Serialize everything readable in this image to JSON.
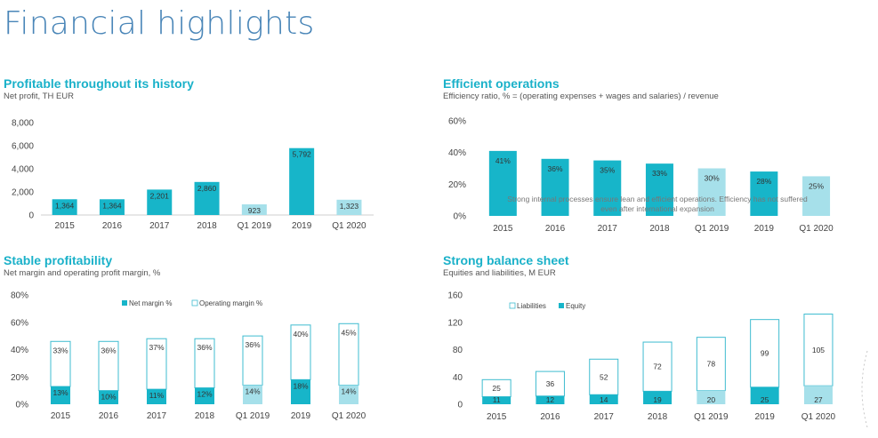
{
  "page": {
    "title": "Financial highlights"
  },
  "colors": {
    "dark": "#17b5c9",
    "light": "#a6e0ea",
    "outline": "#3fbcd0",
    "title": "#4a86b8",
    "panel_title": "#1ab1c9"
  },
  "panels": {
    "net_profit": {
      "title": "Profitable throughout its history",
      "subtitle": "Net profit, TH EUR"
    },
    "efficiency": {
      "title": "Efficient operations",
      "subtitle": "Efficiency ratio, % = (operating expenses + wages and salaries) / revenue",
      "annotation_line1": "Strong internal processes ensure lean and efficient operations. Efficiency has not suffered",
      "annotation_line2": "even after international expansion"
    },
    "margins": {
      "title": "Stable profitability",
      "subtitle": "Net margin and operating profit margin, %"
    },
    "balance": {
      "title": "Strong balance sheet",
      "subtitle": "Equities and liabilities, M EUR"
    }
  },
  "chart_data": [
    {
      "id": "net_profit",
      "type": "bar",
      "title": "Profitable throughout its history",
      "ylabel": "Net profit, TH EUR",
      "categories": [
        "2015",
        "2016",
        "2017",
        "2018",
        "Q1 2019",
        "2019",
        "Q1 2020"
      ],
      "values": [
        1364,
        1364,
        2201,
        2860,
        923,
        5792,
        1323
      ],
      "data_labels": [
        "1,364",
        "1,364",
        "2,201",
        "2,860",
        "923",
        "5,792",
        "1,323"
      ],
      "quarter_flags": [
        false,
        false,
        false,
        false,
        true,
        false,
        true
      ],
      "ylim": [
        0,
        8000
      ],
      "yticks": [
        0,
        2000,
        4000,
        6000,
        8000
      ],
      "ytick_labels": [
        "0",
        "2,000",
        "4,000",
        "6,000",
        "8,000"
      ]
    },
    {
      "id": "efficiency",
      "type": "bar",
      "title": "Efficient operations",
      "ylabel": "Efficiency ratio, %",
      "categories": [
        "2015",
        "2016",
        "2017",
        "2018",
        "Q1 2019",
        "2019",
        "Q1 2020"
      ],
      "values": [
        41,
        36,
        35,
        33,
        30,
        28,
        25
      ],
      "data_labels": [
        "41%",
        "36%",
        "35%",
        "33%",
        "30%",
        "28%",
        "25%"
      ],
      "quarter_flags": [
        false,
        false,
        false,
        false,
        true,
        false,
        true
      ],
      "ylim": [
        0,
        60
      ],
      "yticks": [
        0,
        20,
        40,
        60
      ],
      "ytick_labels": [
        "0%",
        "20%",
        "40%",
        "60%"
      ]
    },
    {
      "id": "margins",
      "type": "bar",
      "title": "Stable profitability",
      "ylabel": "Net margin and operating profit margin, %",
      "categories": [
        "2015",
        "2016",
        "2017",
        "2018",
        "Q1 2019",
        "2019",
        "Q1 2020"
      ],
      "series": [
        {
          "name": "Net margin %",
          "values": [
            13,
            10,
            11,
            12,
            14,
            18,
            14
          ],
          "labels": [
            "13%",
            "10%",
            "11%",
            "12%",
            "14%",
            "18%",
            "14%"
          ]
        },
        {
          "name": "Operating margin %",
          "values": [
            33,
            36,
            37,
            36,
            36,
            40,
            45
          ],
          "labels": [
            "33%",
            "36%",
            "37%",
            "36%",
            "36%",
            "40%",
            "45%"
          ]
        }
      ],
      "quarter_flags": [
        false,
        false,
        false,
        false,
        true,
        false,
        true
      ],
      "stacked": true,
      "ylim": [
        0,
        80
      ],
      "yticks": [
        0,
        20,
        40,
        60,
        80
      ],
      "ytick_labels": [
        "0%",
        "20%",
        "40%",
        "60%",
        "80%"
      ],
      "legend": "top-center"
    },
    {
      "id": "balance",
      "type": "bar",
      "title": "Strong balance sheet",
      "ylabel": "Equities and liabilities, M EUR",
      "categories": [
        "2015",
        "2016",
        "2017",
        "2018",
        "Q1 2019",
        "2019",
        "Q1 2020"
      ],
      "series": [
        {
          "name": "Liabilities",
          "values": [
            25,
            36,
            52,
            72,
            78,
            99,
            105
          ]
        },
        {
          "name": "Equity",
          "values": [
            11,
            12,
            14,
            19,
            20,
            25,
            27
          ]
        }
      ],
      "quarter_flags": [
        false,
        false,
        false,
        false,
        true,
        false,
        true
      ],
      "stacked": true,
      "ylim": [
        0,
        160
      ],
      "yticks": [
        0,
        40,
        80,
        120,
        160
      ],
      "ytick_labels": [
        "0",
        "40",
        "80",
        "120",
        "160"
      ],
      "legend": "top-center"
    }
  ]
}
